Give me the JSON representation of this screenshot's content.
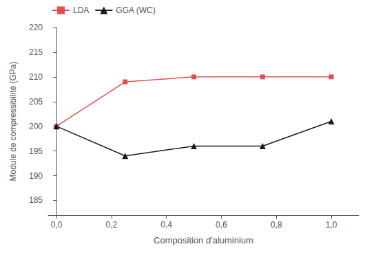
{
  "chart_data": {
    "type": "line",
    "x": [
      0.0,
      0.25,
      0.5,
      0.75,
      1.0
    ],
    "series": [
      {
        "name": "LDA",
        "color": "#e05050",
        "marker": "square",
        "line_style": "solid",
        "values": [
          200,
          209,
          210,
          210,
          210
        ]
      },
      {
        "name": "GGA (WC)",
        "color": "#1a1a1a",
        "marker": "triangle",
        "line_style": "solid",
        "values": [
          200,
          194,
          196,
          196,
          201
        ]
      }
    ],
    "xlabel": "Composition d'aluminium",
    "ylabel": "Module de compressibilité (GPa)",
    "xlim": [
      -0.03,
      1.1
    ],
    "ylim": [
      182,
      220
    ],
    "xticks": [
      {
        "value": 0.0,
        "label": "0,0"
      },
      {
        "value": 0.2,
        "label": "0,2"
      },
      {
        "value": 0.4,
        "label": "0,4"
      },
      {
        "value": 0.6,
        "label": "0,6"
      },
      {
        "value": 0.8,
        "label": "0,8"
      },
      {
        "value": 1.0,
        "label": "1,0"
      }
    ],
    "yticks": [
      185,
      190,
      195,
      200,
      205,
      210,
      215,
      220
    ],
    "grid": false,
    "legend": "upper left"
  }
}
